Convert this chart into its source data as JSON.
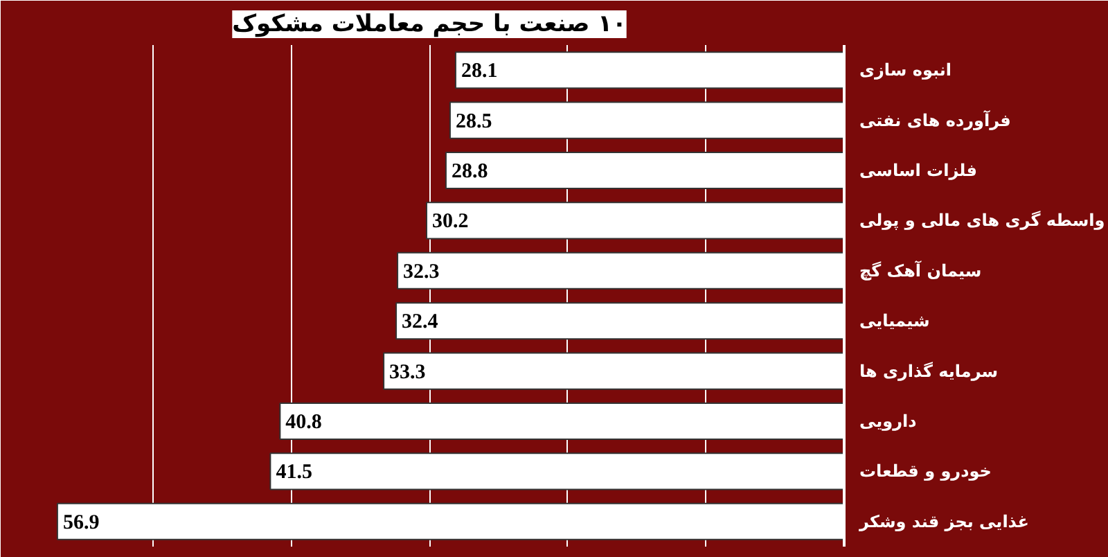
{
  "chart_data": {
    "type": "bar",
    "orientation": "horizontal",
    "title": "۱۰ صنعت با حجم معاملات مشکوک",
    "categories": [
      "انبوه سازی",
      "فرآورده های نفتی",
      "فلزات اساسی",
      "واسطه گری های مالی و پولی",
      "سیمان آهک گچ",
      "شیمیایی",
      "سرمایه گذاری ها",
      "دارویی",
      "خودرو و قطعات",
      "غذایی بجز قند وشکر"
    ],
    "values": [
      28.1,
      28.5,
      28.8,
      30.2,
      32.3,
      32.4,
      33.3,
      40.8,
      41.5,
      56.9
    ],
    "color": "#ffffff",
    "data_labels": true,
    "xlim": [
      60,
      0
    ],
    "xticks": [
      {
        "value": 10,
        "label": null
      },
      {
        "value": 20,
        "label": null
      },
      {
        "value": 30,
        "label": null
      },
      {
        "value": 40,
        "label": null
      },
      {
        "value": 50,
        "label": null
      }
    ],
    "grid": "x",
    "tick_labels": "y"
  }
}
